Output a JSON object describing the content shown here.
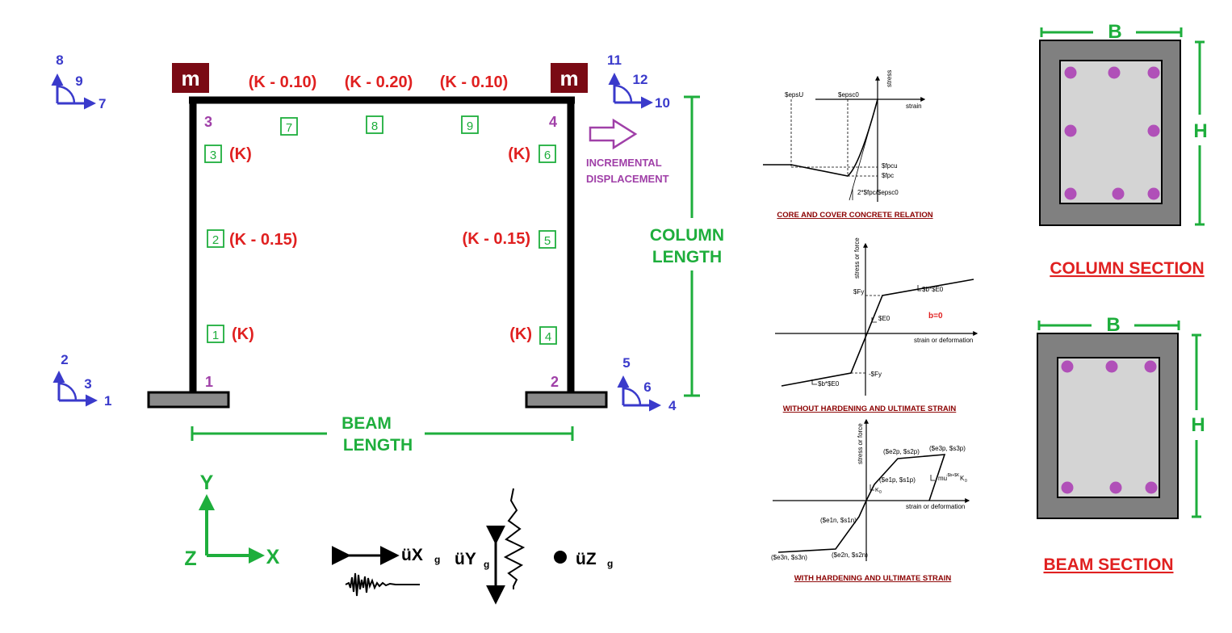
{
  "colors": {
    "frame": "#000000",
    "node_numbers": "#a040a8",
    "stiffness_labels": "#e02020",
    "element_numbers": "#1eae3c",
    "dofs": "#3a3acb",
    "dimensions": "#1eae3c",
    "mass_box": "#7a0a14",
    "rebar": "#b050b8",
    "cover": "#808080",
    "core": "#d4d4d4",
    "section_titles": "#e02020",
    "curve_captions": "#8b0000"
  },
  "frame": {
    "mass_label": "m",
    "nodes": [
      "1",
      "2",
      "3",
      "4"
    ],
    "elements": [
      "1",
      "2",
      "3",
      "4",
      "5",
      "6",
      "7",
      "8",
      "9"
    ],
    "stiffness": {
      "beam_left": "(K - 0.10)",
      "beam_mid": "(K - 0.20)",
      "beam_right": "(K - 0.10)",
      "col_top": "(K)",
      "col_mid": "(K - 0.15)",
      "col_bot": "(K)"
    },
    "incremental_displacement": [
      "INCREMENTAL",
      "DISPLACEMENT"
    ],
    "column_length": [
      "COLUMN",
      "LENGTH"
    ],
    "beam_length": [
      "BEAM",
      "LENGTH"
    ],
    "dofs": {
      "node1": [
        "1",
        "2",
        "3"
      ],
      "node2": [
        "4",
        "5",
        "6"
      ],
      "node3": [
        "7",
        "8",
        "9"
      ],
      "node4": [
        "10",
        "11",
        "12"
      ]
    }
  },
  "axes": {
    "x": "X",
    "y": "Y",
    "z": "Z"
  },
  "ground_motion": {
    "x": "üX",
    "y": "üY",
    "z": "üZ",
    "subscript": "g"
  },
  "curves": {
    "concrete": {
      "caption": "CORE AND COVER CONCRETE RELATION",
      "labels": {
        "stress": "stress",
        "strain": "strain",
        "epsU": "$epsU",
        "epsc0": "$epsc0",
        "fpcu": "$fpcu",
        "fpc": "$fpc",
        "slope": "2*$fpc/$epsc0"
      }
    },
    "steel01": {
      "caption": "WITHOUT HARDENING AND ULTIMATE STRAIN",
      "labels": {
        "y_axis": "stress or force",
        "x_axis": "strain or deformation",
        "fy": "$Fy",
        "neg_fy": "-$Fy",
        "e0": "$E0",
        "b_e0_top": "$b*$E0",
        "b_e0_bot": "$b*$E0",
        "b_value": "b=0"
      }
    },
    "hysteretic": {
      "caption": "WITH HARDENING AND ULTIMATE STRAIN",
      "labels": {
        "y_axis": "stress or force",
        "x_axis": "strain or deformation",
        "p1": "($e1p, $s1p)",
        "p2": "($e2p, $s2p)",
        "p3": "($e3p, $s3p)",
        "n1": "($e1n, $s1n)",
        "n2": "($e2n, $s2n)",
        "n3": "($e3n, $s3n)",
        "k0": "K",
        "k0_sub": "0",
        "mu_label": "mu",
        "mu_sup": "-$b+$K",
        "mu_k": "K",
        "mu_k_sub": "0"
      }
    }
  },
  "sections": {
    "column": {
      "title": "COLUMN SECTION",
      "width": "B",
      "height": "H"
    },
    "beam": {
      "title": "BEAM SECTION",
      "width": "B",
      "height": "H"
    }
  }
}
